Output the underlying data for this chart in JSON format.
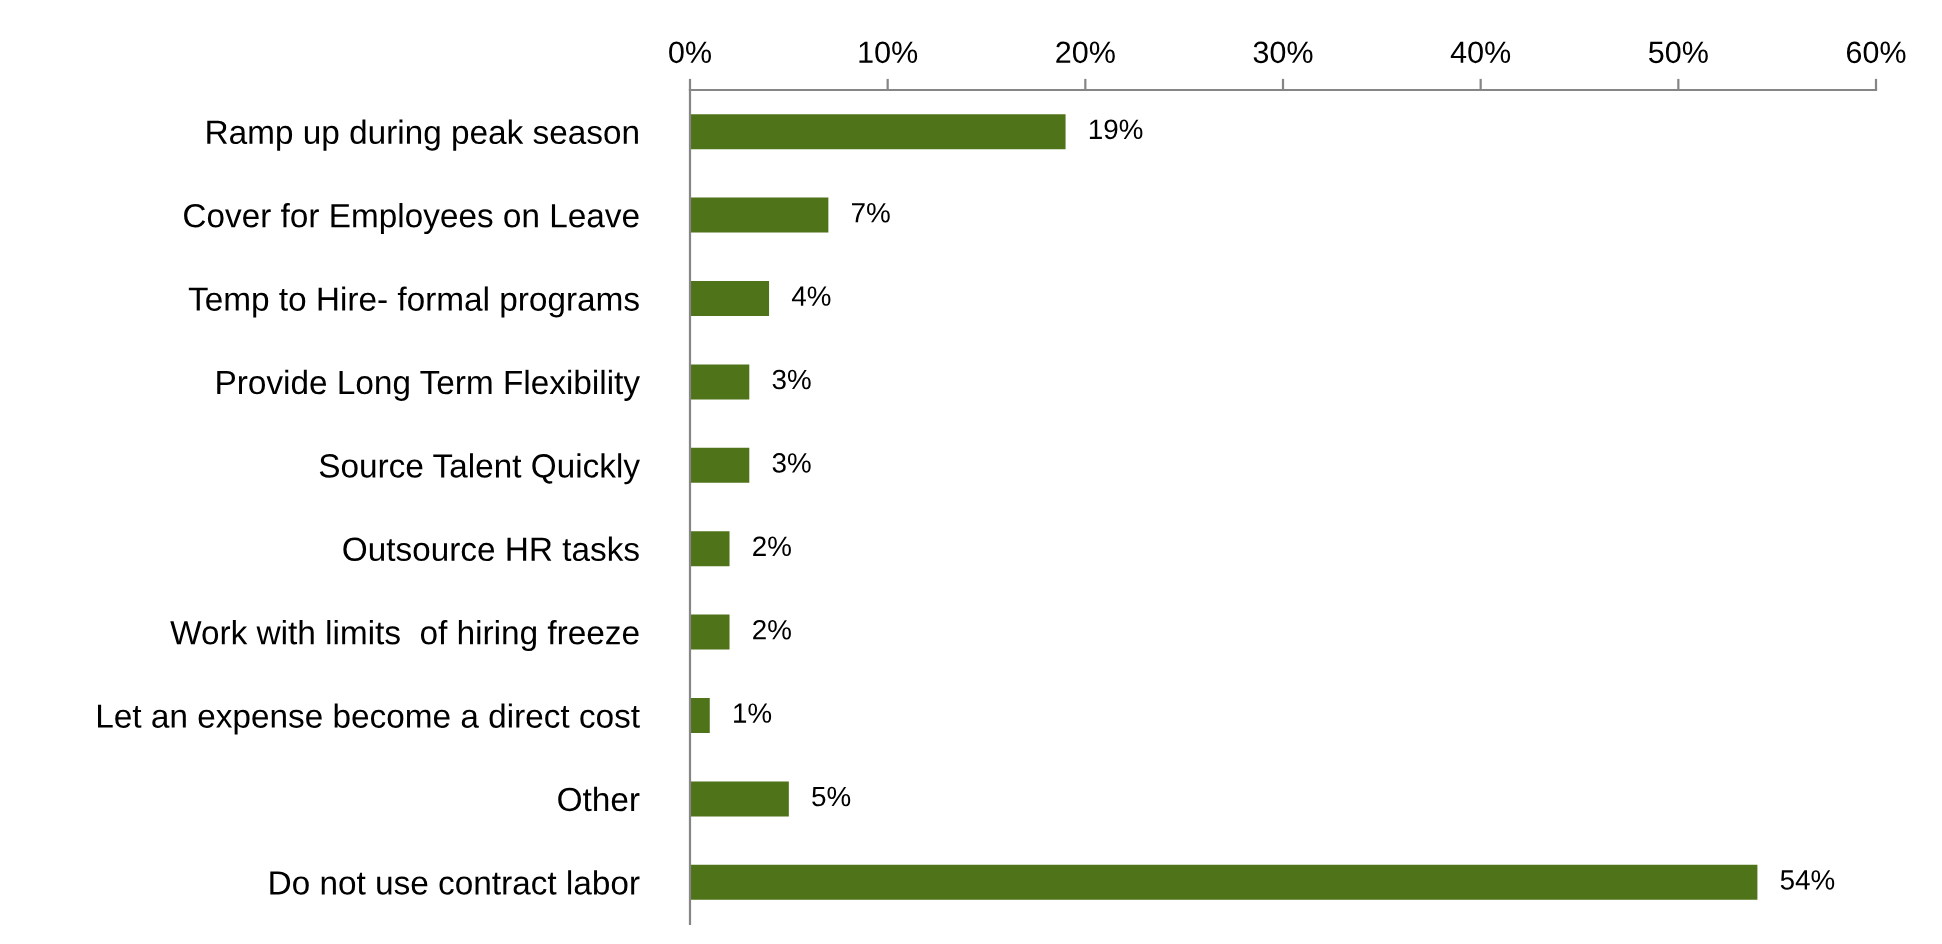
{
  "chart_data": {
    "type": "bar",
    "orientation": "horizontal",
    "categories": [
      "Ramp up during peak season",
      "Cover for Employees on Leave",
      "Temp to Hire- formal programs",
      "Provide Long Term Flexibility",
      "Source Talent Quickly",
      "Outsource HR tasks",
      "Work with limits  of hiring freeze",
      "Let an expense become a direct cost",
      "Other",
      "Do not use contract labor"
    ],
    "values": [
      19,
      7,
      4,
      3,
      3,
      2,
      2,
      1,
      5,
      54
    ],
    "value_labels": [
      "19%",
      "7%",
      "4%",
      "3%",
      "3%",
      "2%",
      "2%",
      "1%",
      "5%",
      "54%"
    ],
    "color": "#4f7319",
    "xlim": [
      0,
      60
    ],
    "xticks": [
      {
        "value": 0,
        "label": "0%"
      },
      {
        "value": 10,
        "label": "10%"
      },
      {
        "value": 20,
        "label": "20%"
      },
      {
        "value": 30,
        "label": "30%"
      },
      {
        "value": 40,
        "label": "40%"
      },
      {
        "value": 50,
        "label": "50%"
      },
      {
        "value": 60,
        "label": "60%"
      }
    ],
    "grid": false,
    "legend": false
  }
}
